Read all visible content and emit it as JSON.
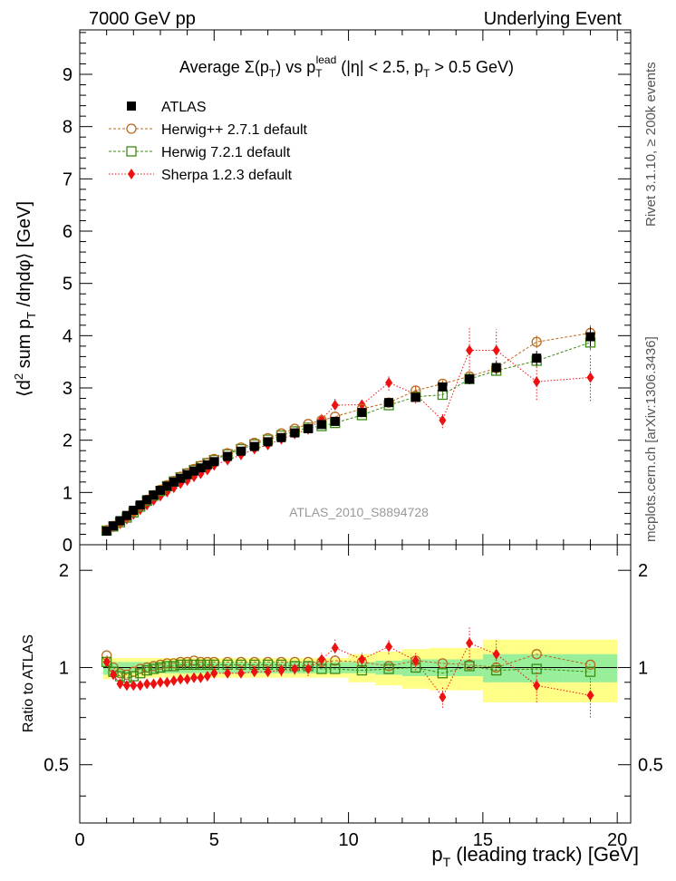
{
  "header": {
    "left": "7000 GeV pp",
    "right": "Underlying Event"
  },
  "side": {
    "rivet": "Rivet 3.1.10, ≥ 200k events",
    "mcplots": "mcplots.cern.ch [arXiv:1306.3436]"
  },
  "chart_data": [
    {
      "type": "scatter",
      "panel": "main",
      "title": "Average Σ(pT) vs pT^lead (|η| < 2.5, pT > 0.5 GeV)",
      "title_parts": {
        "prefix": "Average ",
        "sigma": "Σ(p",
        "sub_t": "T",
        "vs": ") vs p",
        "lead": "lead",
        "rest": " (|η| < 2.5, p",
        "rest2": " > 0.5 GeV)"
      },
      "ylabel": "⟨d² sum pT /dηdφ⟩ [GeV]",
      "ylabel_parts": {
        "a": "⟨d",
        "sup2": "2",
        "b": " sum p",
        "c": " /dηdφ⟩ [GeV]"
      },
      "xlim": [
        0,
        20.5
      ],
      "ylim": [
        0,
        9.85
      ],
      "yticks": [
        0,
        1,
        2,
        3,
        4,
        5,
        6,
        7,
        8,
        9
      ],
      "watermark": "ATLAS_2010_S8894728",
      "legend": [
        {
          "name": "ATLAS",
          "marker": "square-filled",
          "color": "#000000"
        },
        {
          "name": "Herwig++ 2.7.1 default",
          "marker": "circle-open",
          "color": "#b86a1e"
        },
        {
          "name": "Herwig 7.2.1 default",
          "marker": "square-open",
          "color": "#3c8a14"
        },
        {
          "name": "Sherpa 1.2.3 default",
          "marker": "diamond-filled",
          "color": "#ee1111"
        }
      ],
      "x": [
        1.0,
        1.25,
        1.5,
        1.75,
        2.0,
        2.25,
        2.5,
        2.75,
        3.0,
        3.25,
        3.5,
        3.75,
        4.0,
        4.25,
        4.5,
        4.75,
        5.0,
        5.5,
        6.0,
        6.5,
        7.0,
        7.5,
        8.0,
        8.5,
        9.0,
        9.5,
        10.5,
        11.5,
        12.5,
        13.5,
        14.5,
        15.5,
        17.0,
        19.0
      ],
      "series": [
        {
          "name": "ATLAS",
          "values": [
            0.26,
            0.36,
            0.46,
            0.56,
            0.66,
            0.76,
            0.86,
            0.95,
            1.04,
            1.12,
            1.2,
            1.27,
            1.34,
            1.41,
            1.47,
            1.53,
            1.59,
            1.69,
            1.79,
            1.88,
            1.97,
            2.05,
            2.14,
            2.22,
            2.3,
            2.36,
            2.53,
            2.72,
            2.82,
            3.02,
            3.17,
            3.39,
            3.57,
            3.98
          ],
          "err": [
            0.01,
            0.01,
            0.01,
            0.01,
            0.01,
            0.01,
            0.01,
            0.01,
            0.01,
            0.01,
            0.01,
            0.01,
            0.01,
            0.02,
            0.02,
            0.02,
            0.02,
            0.02,
            0.02,
            0.03,
            0.03,
            0.03,
            0.03,
            0.04,
            0.04,
            0.05,
            0.05,
            0.06,
            0.07,
            0.08,
            0.1,
            0.12,
            0.14,
            0.18
          ]
        },
        {
          "name": "Herwig++ 2.7.1 default",
          "values": [
            0.28,
            0.36,
            0.44,
            0.53,
            0.64,
            0.75,
            0.86,
            0.95,
            1.05,
            1.14,
            1.22,
            1.3,
            1.37,
            1.45,
            1.51,
            1.57,
            1.64,
            1.75,
            1.86,
            1.95,
            2.04,
            2.13,
            2.22,
            2.31,
            2.38,
            2.45,
            2.6,
            2.72,
            2.95,
            3.08,
            3.22,
            3.38,
            3.88,
            4.05
          ],
          "err": [
            0,
            0,
            0,
            0,
            0,
            0,
            0,
            0,
            0,
            0,
            0,
            0,
            0,
            0,
            0,
            0,
            0,
            0,
            0,
            0,
            0,
            0,
            0,
            0,
            0,
            0,
            0.04,
            0.05,
            0.06,
            0.07,
            0.08,
            0.1,
            0.12,
            0.15
          ]
        },
        {
          "name": "Herwig 7.2.1 default",
          "values": [
            0.27,
            0.35,
            0.43,
            0.52,
            0.62,
            0.73,
            0.84,
            0.94,
            1.03,
            1.12,
            1.21,
            1.29,
            1.36,
            1.43,
            1.5,
            1.56,
            1.62,
            1.73,
            1.83,
            1.92,
            2.01,
            2.09,
            2.17,
            2.24,
            2.27,
            2.33,
            2.48,
            2.67,
            2.83,
            2.87,
            3.17,
            3.33,
            3.52,
            3.87
          ],
          "err": [
            0,
            0,
            0,
            0,
            0,
            0,
            0,
            0,
            0,
            0,
            0,
            0,
            0,
            0,
            0,
            0,
            0,
            0,
            0,
            0,
            0,
            0,
            0,
            0,
            0,
            0,
            0.04,
            0.05,
            0.06,
            0.07,
            0.08,
            0.1,
            0.12,
            0.15
          ]
        },
        {
          "name": "Sherpa 1.2.3 default",
          "values": [
            0.27,
            0.34,
            0.4,
            0.49,
            0.58,
            0.67,
            0.76,
            0.85,
            0.93,
            1.01,
            1.09,
            1.17,
            1.23,
            1.3,
            1.36,
            1.43,
            1.52,
            1.62,
            1.72,
            1.83,
            1.91,
            2.02,
            2.12,
            2.21,
            2.4,
            2.67,
            2.68,
            3.1,
            2.88,
            2.38,
            3.72,
            3.72,
            3.12,
            3.2
          ],
          "err": [
            0.01,
            0.01,
            0.01,
            0.01,
            0.01,
            0.01,
            0.01,
            0.02,
            0.02,
            0.02,
            0.02,
            0.02,
            0.02,
            0.03,
            0.03,
            0.03,
            0.03,
            0.04,
            0.05,
            0.06,
            0.06,
            0.07,
            0.08,
            0.1,
            0.12,
            0.15,
            0.12,
            0.15,
            0.18,
            0.15,
            0.45,
            0.4,
            0.35,
            0.45
          ]
        }
      ]
    },
    {
      "type": "scatter",
      "panel": "ratio",
      "ylabel": "Ratio to ATLAS",
      "xlabel": "pT (leading track) [GeV]",
      "xlabel_parts": {
        "a": "p",
        "sub": "T",
        "b": " (leading track) [GeV]"
      },
      "xlim": [
        0,
        20.5
      ],
      "ylim": [
        0.33,
        2.4
      ],
      "ylog": true,
      "xticks": [
        0,
        5,
        10,
        15,
        20
      ],
      "yticks": [
        0.5,
        1,
        2
      ],
      "bands": {
        "x_edges": [
          0.875,
          1.125,
          1.375,
          1.625,
          1.875,
          2.125,
          2.375,
          2.625,
          2.875,
          3.125,
          3.375,
          3.625,
          3.875,
          4.125,
          4.375,
          4.625,
          4.875,
          5.25,
          5.75,
          6.25,
          6.75,
          7.25,
          7.75,
          8.25,
          8.75,
          9.25,
          10.0,
          11.0,
          12.0,
          13.0,
          14.0,
          15.0,
          16.0,
          18.0,
          20.0
        ],
        "stat": [
          0.05,
          0.04,
          0.04,
          0.04,
          0.04,
          0.04,
          0.04,
          0.04,
          0.04,
          0.04,
          0.04,
          0.04,
          0.04,
          0.04,
          0.04,
          0.04,
          0.04,
          0.04,
          0.04,
          0.04,
          0.04,
          0.04,
          0.04,
          0.04,
          0.04,
          0.04,
          0.04,
          0.05,
          0.06,
          0.06,
          0.06,
          0.1,
          0.1,
          0.1
        ],
        "total": [
          0.08,
          0.07,
          0.07,
          0.07,
          0.07,
          0.07,
          0.07,
          0.07,
          0.07,
          0.07,
          0.07,
          0.07,
          0.07,
          0.07,
          0.07,
          0.07,
          0.07,
          0.07,
          0.07,
          0.07,
          0.07,
          0.07,
          0.07,
          0.07,
          0.07,
          0.07,
          0.1,
          0.12,
          0.14,
          0.15,
          0.15,
          0.22,
          0.22,
          0.22
        ],
        "stat_color": "#99ee99",
        "total_color": "#ffff88"
      },
      "series": [
        {
          "name": "Herwig++ 2.7.1 default",
          "values": [
            1.09,
            1.0,
            0.96,
            0.95,
            0.97,
            0.99,
            1.0,
            1.01,
            1.02,
            1.03,
            1.03,
            1.04,
            1.04,
            1.05,
            1.04,
            1.04,
            1.04,
            1.04,
            1.04,
            1.04,
            1.04,
            1.04,
            1.04,
            1.04,
            1.04,
            1.05,
            1.04,
            1.01,
            1.05,
            1.03,
            1.02,
            1.0,
            1.1,
            1.02
          ]
        },
        {
          "name": "Herwig 7.2.1 default",
          "values": [
            1.04,
            0.97,
            0.94,
            0.93,
            0.94,
            0.96,
            0.98,
            0.99,
            1.0,
            1.01,
            1.01,
            1.02,
            1.02,
            1.02,
            1.02,
            1.02,
            1.02,
            1.02,
            1.02,
            1.02,
            1.02,
            1.02,
            1.01,
            1.01,
            0.99,
            0.99,
            0.98,
            0.99,
            1.0,
            0.96,
            1.01,
            0.98,
            0.99,
            0.97
          ]
        },
        {
          "name": "Sherpa 1.2.3 default",
          "values": [
            1.04,
            0.95,
            0.89,
            0.88,
            0.88,
            0.88,
            0.89,
            0.89,
            0.9,
            0.9,
            0.91,
            0.92,
            0.92,
            0.93,
            0.93,
            0.94,
            0.96,
            0.96,
            0.96,
            0.97,
            0.97,
            0.98,
            0.99,
            0.99,
            1.06,
            1.15,
            1.06,
            1.16,
            1.05,
            0.81,
            1.19,
            1.1,
            0.88,
            0.82
          ],
          "err": [
            0.03,
            0.02,
            0.02,
            0.02,
            0.02,
            0.02,
            0.02,
            0.02,
            0.02,
            0.02,
            0.02,
            0.02,
            0.02,
            0.02,
            0.02,
            0.02,
            0.02,
            0.02,
            0.03,
            0.03,
            0.03,
            0.04,
            0.04,
            0.05,
            0.05,
            0.07,
            0.05,
            0.06,
            0.07,
            0.06,
            0.14,
            0.12,
            0.1,
            0.12
          ]
        }
      ]
    }
  ]
}
